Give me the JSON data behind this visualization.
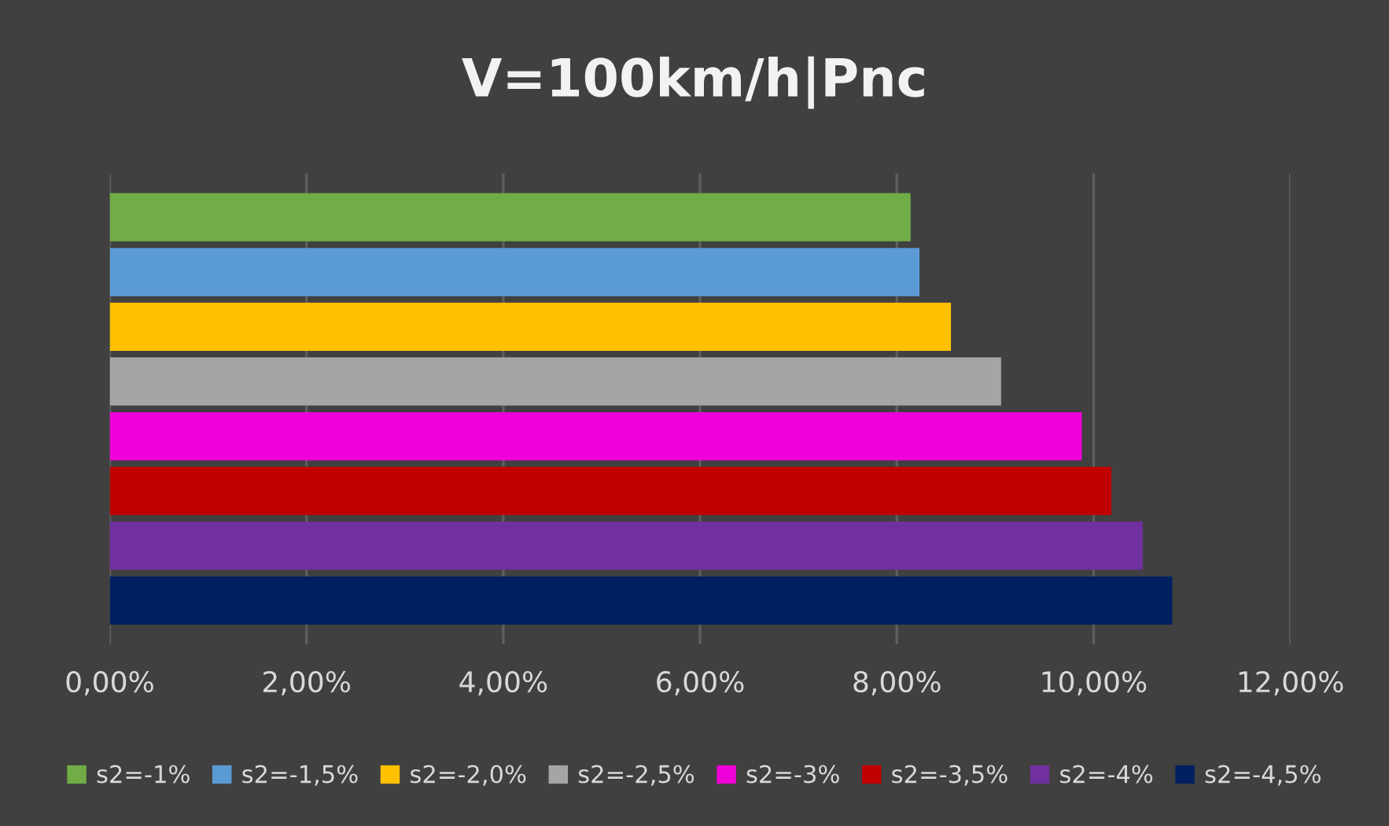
{
  "chart_data": {
    "type": "bar",
    "orientation": "horizontal",
    "title": "V=100km/h|Pnc",
    "categories": [
      null
    ],
    "series": [
      {
        "name": "s2=-1%",
        "color": "#70ad47",
        "values": [
          8.14
        ]
      },
      {
        "name": "s2=-1,5%",
        "color": "#5b9bd5",
        "values": [
          8.23
        ]
      },
      {
        "name": "s2=-2,0%",
        "color": "#ffc000",
        "values": [
          8.55
        ]
      },
      {
        "name": "s2=-2,5%",
        "color": "#a5a5a5",
        "values": [
          9.06
        ]
      },
      {
        "name": "s2=-3%",
        "color": "#f000d8",
        "values": [
          9.88
        ]
      },
      {
        "name": "s2=-3,5%",
        "color": "#c00000",
        "values": [
          10.18
        ]
      },
      {
        "name": "s2=-4%",
        "color": "#7030a0",
        "values": [
          10.5
        ]
      },
      {
        "name": "s2=-4,5%",
        "color": "#002060",
        "values": [
          10.8
        ]
      }
    ],
    "xlim": [
      0,
      12
    ],
    "xticks": [
      {
        "value": 0,
        "label": "0,00%"
      },
      {
        "value": 2,
        "label": "2,00%"
      },
      {
        "value": 4,
        "label": "4,00%"
      },
      {
        "value": 6,
        "label": "6,00%"
      },
      {
        "value": 8,
        "label": "8,00%"
      },
      {
        "value": 10,
        "label": "10,00%"
      },
      {
        "value": 12,
        "label": "12,00%"
      }
    ],
    "grid": "x",
    "legend": "bottom"
  }
}
